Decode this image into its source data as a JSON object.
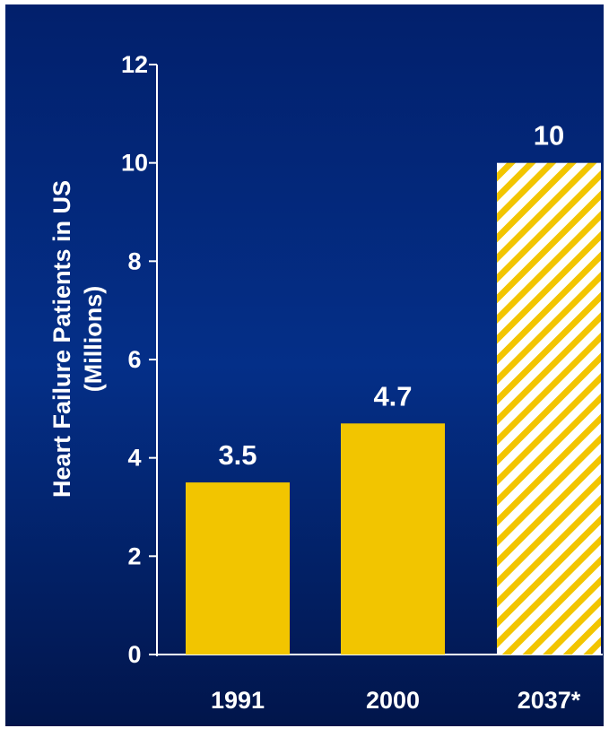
{
  "chart_data": {
    "type": "bar",
    "categories": [
      "1991",
      "2000",
      "2037*"
    ],
    "values": [
      3.5,
      4.7,
      10
    ],
    "data_labels": [
      "3.5",
      "4.7",
      "10"
    ],
    "ylabel_line1": "Heart Failure Patients in US",
    "ylabel_line2": "(Millions)",
    "xlabel": "",
    "ylim": [
      0,
      12
    ],
    "yticks": [
      0,
      2,
      4,
      6,
      8,
      10,
      12
    ],
    "grid": false,
    "legend": "none",
    "projected": [
      false,
      false,
      true
    ]
  },
  "colors": {
    "bar": "#f2c500",
    "background_top": "#02206c",
    "background_mid": "#042f88",
    "background_bottom": "#01154b",
    "text": "#ffffff",
    "axis": "#ffffff",
    "hatch_background": "#ffffff"
  }
}
